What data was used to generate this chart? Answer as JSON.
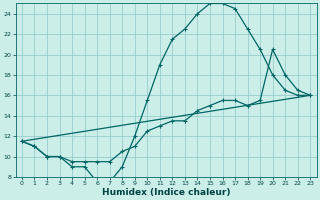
{
  "xlabel": "Humidex (Indice chaleur)",
  "bg_color": "#cceee8",
  "grid_color": "#99cccc",
  "line_color": "#006666",
  "tick_color": "#004444",
  "xlim": [
    -0.5,
    23.5
  ],
  "ylim": [
    8,
    25
  ],
  "yticks": [
    8,
    10,
    12,
    14,
    16,
    18,
    20,
    22,
    24
  ],
  "xticks": [
    0,
    1,
    2,
    3,
    4,
    5,
    6,
    7,
    8,
    9,
    10,
    11,
    12,
    13,
    14,
    15,
    16,
    17,
    18,
    19,
    20,
    21,
    22,
    23
  ],
  "curve1_x": [
    0,
    1,
    2,
    3,
    4,
    5,
    6,
    7,
    8,
    9,
    10,
    11,
    12,
    13,
    14,
    15,
    16,
    17,
    18,
    19,
    20,
    21,
    22,
    23
  ],
  "curve1_y": [
    11.5,
    11.0,
    10.0,
    10.0,
    9.0,
    9.0,
    7.5,
    7.5,
    9.0,
    12.0,
    15.5,
    19.0,
    21.5,
    22.5,
    24.0,
    25.0,
    25.0,
    24.5,
    22.5,
    20.5,
    18.0,
    16.5,
    16.0,
    16.0
  ],
  "curve2_x": [
    0,
    1,
    2,
    3,
    4,
    5,
    6,
    7,
    8,
    9,
    10,
    11,
    12,
    13,
    14,
    15,
    16,
    17,
    18,
    19,
    20,
    21,
    22,
    23
  ],
  "curve2_y": [
    11.5,
    11.0,
    10.0,
    10.0,
    9.5,
    9.5,
    9.5,
    9.5,
    10.5,
    11.0,
    12.5,
    13.0,
    13.5,
    13.5,
    14.5,
    15.0,
    15.5,
    15.5,
    15.0,
    15.5,
    20.5,
    18.0,
    16.5,
    16.0
  ],
  "curve3_x": [
    0,
    23
  ],
  "curve3_y": [
    11.5,
    16.0
  ]
}
